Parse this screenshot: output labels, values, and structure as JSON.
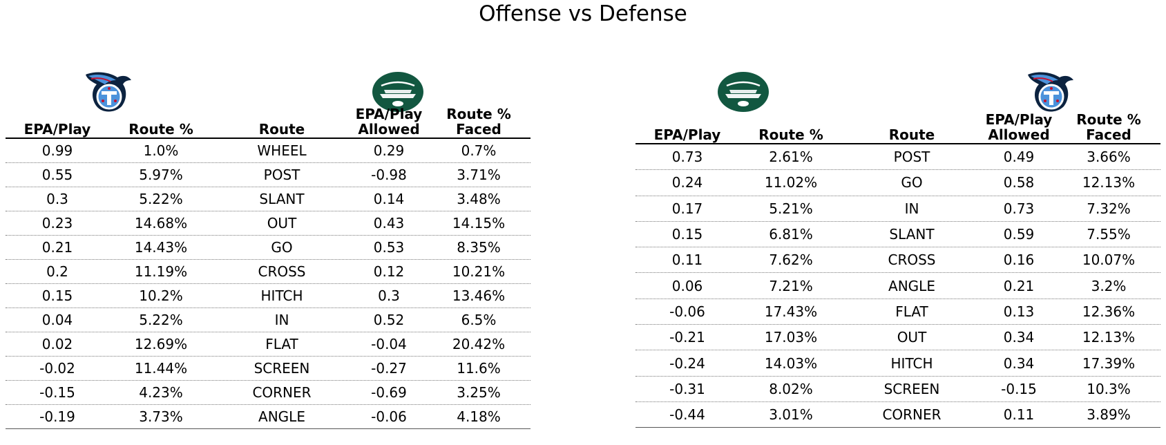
{
  "title": "Offense vs Defense",
  "colors": {
    "titans_navy": "#0C2340",
    "titans_blue": "#4B92DB",
    "titans_red": "#C8102E",
    "jets_green": "#125740"
  },
  "chart_data": [
    {
      "type": "table",
      "logos": [
        "titans-logo",
        "jets-logo"
      ],
      "columns": [
        "EPA/Play",
        "Route %",
        "Route",
        "EPA/Play\nAllowed",
        "Route %\nFaced"
      ],
      "rows": [
        [
          "0.99",
          "1.0%",
          "WHEEL",
          "0.29",
          "0.7%"
        ],
        [
          "0.55",
          "5.97%",
          "POST",
          "-0.98",
          "3.71%"
        ],
        [
          "0.3",
          "5.22%",
          "SLANT",
          "0.14",
          "3.48%"
        ],
        [
          "0.23",
          "14.68%",
          "OUT",
          "0.43",
          "14.15%"
        ],
        [
          "0.21",
          "14.43%",
          "GO",
          "0.53",
          "8.35%"
        ],
        [
          "0.2",
          "11.19%",
          "CROSS",
          "0.12",
          "10.21%"
        ],
        [
          "0.15",
          "10.2%",
          "HITCH",
          "0.3",
          "13.46%"
        ],
        [
          "0.04",
          "5.22%",
          "IN",
          "0.52",
          "6.5%"
        ],
        [
          "0.02",
          "12.69%",
          "FLAT",
          "-0.04",
          "20.42%"
        ],
        [
          "-0.02",
          "11.44%",
          "SCREEN",
          "-0.27",
          "11.6%"
        ],
        [
          "-0.15",
          "4.23%",
          "CORNER",
          "-0.69",
          "3.25%"
        ],
        [
          "-0.19",
          "3.73%",
          "ANGLE",
          "-0.06",
          "4.18%"
        ]
      ]
    },
    {
      "type": "table",
      "logos": [
        "jets-logo",
        "titans-logo"
      ],
      "columns": [
        "EPA/Play",
        "Route %",
        "Route",
        "EPA/Play\nAllowed",
        "Route %\nFaced"
      ],
      "rows": [
        [
          "0.73",
          "2.61%",
          "POST",
          "0.49",
          "3.66%"
        ],
        [
          "0.24",
          "11.02%",
          "GO",
          "0.58",
          "12.13%"
        ],
        [
          "0.17",
          "5.21%",
          "IN",
          "0.73",
          "7.32%"
        ],
        [
          "0.15",
          "6.81%",
          "SLANT",
          "0.59",
          "7.55%"
        ],
        [
          "0.11",
          "7.62%",
          "CROSS",
          "0.16",
          "10.07%"
        ],
        [
          "0.06",
          "7.21%",
          "ANGLE",
          "0.21",
          "3.2%"
        ],
        [
          "-0.06",
          "17.43%",
          "FLAT",
          "0.13",
          "12.36%"
        ],
        [
          "-0.21",
          "17.03%",
          "OUT",
          "0.34",
          "12.13%"
        ],
        [
          "-0.24",
          "14.03%",
          "HITCH",
          "0.34",
          "17.39%"
        ],
        [
          "-0.31",
          "8.02%",
          "SCREEN",
          "-0.15",
          "10.3%"
        ],
        [
          "-0.44",
          "3.01%",
          "CORNER",
          "0.11",
          "3.89%"
        ]
      ]
    }
  ]
}
